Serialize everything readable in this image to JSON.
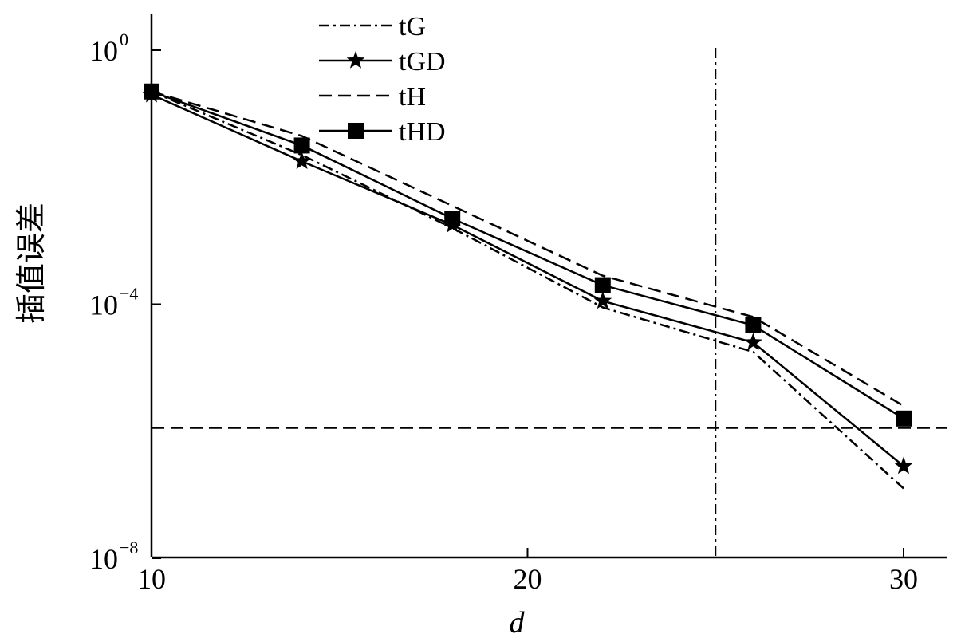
{
  "chart_data": {
    "type": "line",
    "xlabel": "d",
    "ylabel": "插值误差",
    "xlim": [
      10,
      31.2
    ],
    "ylim_log10": [
      -8,
      0.6
    ],
    "yscale": "log",
    "x_ticks": [
      {
        "value": 10,
        "label": "10"
      },
      {
        "value": 20,
        "label": "20"
      },
      {
        "value": 30,
        "label": "30"
      }
    ],
    "y_ticks": [
      {
        "exp": 0,
        "base": "10",
        "exponent": "0"
      },
      {
        "exp": -4,
        "base": "10",
        "exponent": "−4"
      },
      {
        "exp": -8,
        "base": "10",
        "exponent": "−8"
      }
    ],
    "legend_position": "top-center",
    "series": [
      {
        "name": "tG",
        "line": "dashdot",
        "marker": "none",
        "x": [
          10,
          14,
          18,
          22,
          26,
          30
        ],
        "y_log10": [
          -0.65,
          -1.65,
          -2.8,
          -4.05,
          -4.75,
          -6.9
        ]
      },
      {
        "name": "tGD",
        "line": "solid",
        "marker": "star",
        "x": [
          10,
          14,
          18,
          22,
          26,
          30
        ],
        "y_log10": [
          -0.7,
          -1.75,
          -2.75,
          -3.95,
          -4.6,
          -6.55
        ]
      },
      {
        "name": "tH",
        "line": "dashed",
        "marker": "none",
        "x": [
          10,
          14,
          18,
          22,
          26,
          30
        ],
        "y_log10": [
          -0.65,
          -1.35,
          -2.45,
          -3.55,
          -4.2,
          -5.6
        ]
      },
      {
        "name": "tHD",
        "line": "solid",
        "marker": "square",
        "x": [
          10,
          14,
          18,
          22,
          26,
          30
        ],
        "y_log10": [
          -0.65,
          -1.5,
          -2.65,
          -3.7,
          -4.33,
          -5.8
        ]
      }
    ],
    "reference_lines": [
      {
        "orientation": "vertical",
        "x": 25,
        "line": "dashdot"
      },
      {
        "orientation": "horizontal",
        "y_log10": -5.95,
        "line": "dashed"
      }
    ]
  }
}
